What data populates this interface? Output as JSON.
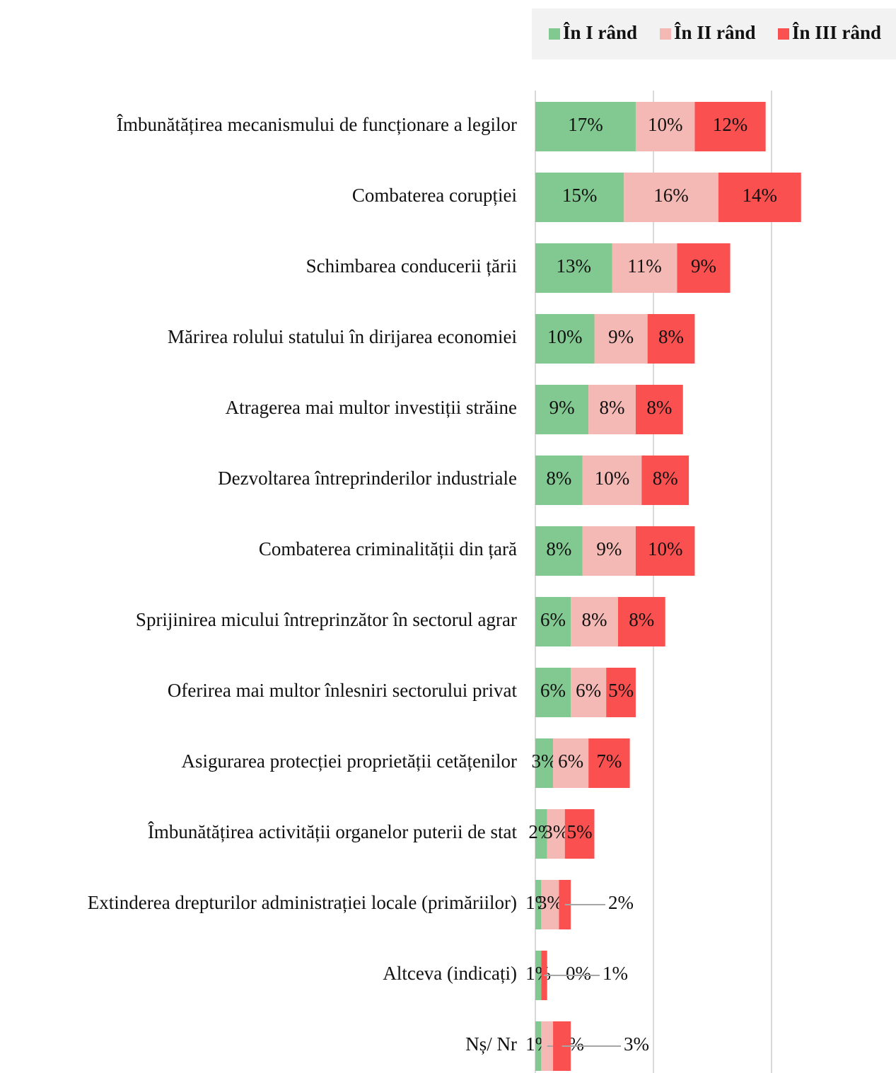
{
  "chart_data": {
    "type": "stacked-barh",
    "categories": [
      "Îmbunătățirea mecanismului de funcționare a legilor",
      "Combaterea corupției",
      "Schimbarea conducerii țării",
      "Mărirea rolului statului în dirijarea economiei",
      "Atragerea mai multor investiții străine",
      "Dezvoltarea întreprinderilor industriale",
      "Combaterea criminalității din țară",
      "Sprijinirea micului întreprinzător în sectorul agrar",
      "Oferirea mai multor înlesniri sectorului privat",
      "Asigurarea protecției proprietății cetățenilor",
      "Îmbunătățirea activității organelor puterii de stat",
      "Extinderea drepturilor administrației locale (primăriilor)",
      "Altceva (indicați)",
      "Nș/ Nr"
    ],
    "series": [
      {
        "name": "În I rând",
        "color": "#82c891",
        "values": [
          17,
          15,
          13,
          10,
          9,
          8,
          8,
          6,
          6,
          3,
          2,
          1,
          1,
          1
        ],
        "value_labels": [
          "17%",
          "15%",
          "13%",
          "10%",
          "9%",
          "8%",
          "8%",
          "6%",
          "6%",
          "3%",
          "2%",
          "1%",
          "1%",
          "1%"
        ]
      },
      {
        "name": "În II rând",
        "color": "#f4b9b5",
        "values": [
          10,
          16,
          11,
          9,
          8,
          10,
          9,
          8,
          6,
          6,
          3,
          3,
          0,
          2
        ],
        "value_labels": [
          "10%",
          "16%",
          "11%",
          "9%",
          "8%",
          "10%",
          "9%",
          "8%",
          "6%",
          "6%",
          "3%",
          "3%",
          "0%",
          "2%"
        ]
      },
      {
        "name": "În III rând",
        "color": "#fb5050",
        "values": [
          12,
          14,
          9,
          8,
          8,
          8,
          10,
          8,
          5,
          7,
          5,
          2,
          1,
          3
        ],
        "value_labels": [
          "12%",
          "14%",
          "9%",
          "8%",
          "8%",
          "8%",
          "10%",
          "8%",
          "5%",
          "7%",
          "5%",
          "2%",
          "1%",
          "3%"
        ]
      }
    ],
    "xlim": [
      0,
      60
    ],
    "xticks": [
      0,
      20,
      40
    ],
    "grid": true
  }
}
